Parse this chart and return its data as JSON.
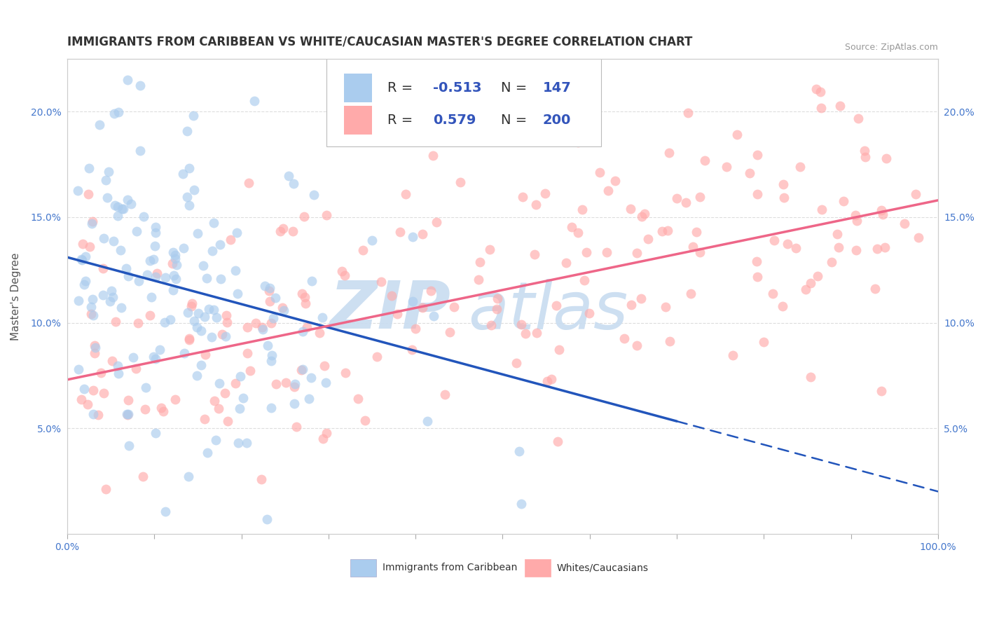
{
  "title": "IMMIGRANTS FROM CARIBBEAN VS WHITE/CAUCASIAN MASTER'S DEGREE CORRELATION CHART",
  "source": "Source: ZipAtlas.com",
  "ylabel": "Master's Degree",
  "xlim": [
    0.0,
    1.0
  ],
  "ylim": [
    0.0,
    0.225
  ],
  "yticks": [
    0.05,
    0.1,
    0.15,
    0.2
  ],
  "ytick_labels": [
    "5.0%",
    "10.0%",
    "15.0%",
    "20.0%"
  ],
  "xtick_positions": [
    0.0,
    0.1,
    0.2,
    0.3,
    0.4,
    0.5,
    0.6,
    0.7,
    0.8,
    0.9,
    1.0
  ],
  "xtick_labels_show": {
    "0.0": "0.0%",
    "1.0": "100.0%"
  },
  "blue_color": "#AACCEE",
  "pink_color": "#FFAAAA",
  "blue_line_color": "#2255BB",
  "pink_line_color": "#EE6688",
  "legend_label1": "Immigrants from Caribbean",
  "legend_label2": "Whites/Caucasians",
  "watermark_zip": "ZIP",
  "watermark_atlas": "atlas",
  "background_color": "#FFFFFF",
  "grid_color": "#DDDDDD",
  "r1": "-0.513",
  "n1": "147",
  "r2": "0.579",
  "n2": "200",
  "blue_trend_x0": 0.0,
  "blue_trend_y0": 0.131,
  "blue_trend_x1": 1.0,
  "blue_trend_y1": 0.02,
  "blue_solid_until": 0.7,
  "pink_trend_x0": 0.0,
  "pink_trend_y0": 0.073,
  "pink_trend_x1": 1.0,
  "pink_trend_y1": 0.158,
  "title_fontsize": 12,
  "source_fontsize": 9,
  "axis_label_fontsize": 11,
  "tick_fontsize": 10,
  "legend_fontsize": 14,
  "scatter_size": 100,
  "scatter_alpha": 0.65
}
